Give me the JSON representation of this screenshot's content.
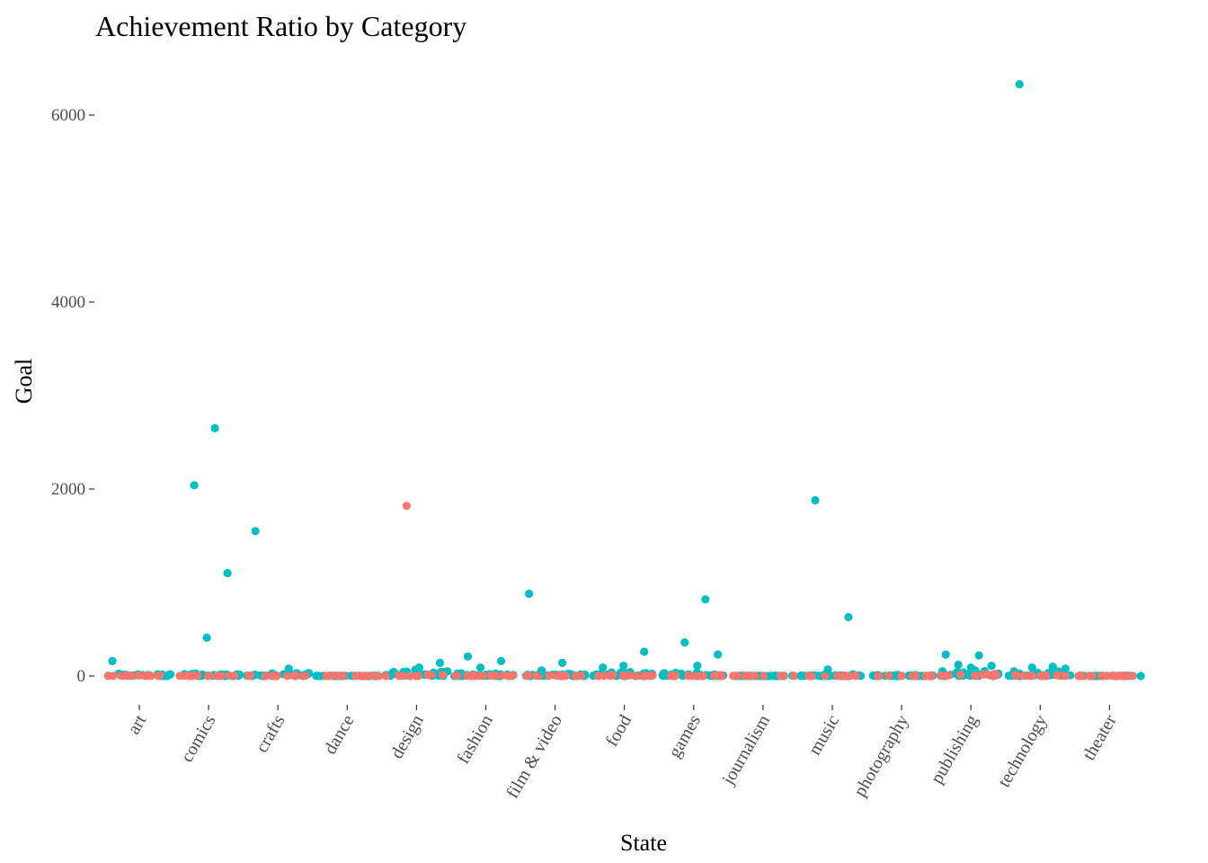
{
  "chart_data": {
    "type": "scatter",
    "title": "Achievement Ratio by Category",
    "xlabel": "State",
    "ylabel": "Goal",
    "categories": [
      "art",
      "comics",
      "crafts",
      "dance",
      "design",
      "fashion",
      "film & video",
      "food",
      "games",
      "journalism",
      "music",
      "photography",
      "publishing",
      "technology",
      "theater"
    ],
    "yticks": [
      0,
      2000,
      4000,
      6000
    ],
    "ylim": [
      -250,
      6350
    ],
    "grid": false,
    "legend": "none",
    "colors": {
      "failed": "#F8766D",
      "successful": "#00BFC4"
    },
    "outliers": [
      {
        "category": "art",
        "y": 160,
        "state": "successful"
      },
      {
        "category": "comics",
        "y": 2650,
        "state": "successful"
      },
      {
        "category": "comics",
        "y": 2040,
        "state": "successful"
      },
      {
        "category": "comics",
        "y": 1100,
        "state": "successful"
      },
      {
        "category": "comics",
        "y": 410,
        "state": "successful"
      },
      {
        "category": "crafts",
        "y": 1550,
        "state": "successful"
      },
      {
        "category": "crafts",
        "y": 80,
        "state": "successful"
      },
      {
        "category": "design",
        "y": 1820,
        "state": "failed"
      },
      {
        "category": "design",
        "y": 140,
        "state": "successful"
      },
      {
        "category": "design",
        "y": 90,
        "state": "successful"
      },
      {
        "category": "fashion",
        "y": 210,
        "state": "successful"
      },
      {
        "category": "fashion",
        "y": 160,
        "state": "successful"
      },
      {
        "category": "fashion",
        "y": 90,
        "state": "successful"
      },
      {
        "category": "film & video",
        "y": 880,
        "state": "successful"
      },
      {
        "category": "film & video",
        "y": 140,
        "state": "successful"
      },
      {
        "category": "film & video",
        "y": 60,
        "state": "successful"
      },
      {
        "category": "food",
        "y": 260,
        "state": "successful"
      },
      {
        "category": "food",
        "y": 110,
        "state": "successful"
      },
      {
        "category": "food",
        "y": 90,
        "state": "successful"
      },
      {
        "category": "games",
        "y": 820,
        "state": "successful"
      },
      {
        "category": "games",
        "y": 360,
        "state": "successful"
      },
      {
        "category": "games",
        "y": 230,
        "state": "successful"
      },
      {
        "category": "games",
        "y": 110,
        "state": "successful"
      },
      {
        "category": "music",
        "y": 1880,
        "state": "successful"
      },
      {
        "category": "music",
        "y": 630,
        "state": "successful"
      },
      {
        "category": "music",
        "y": 70,
        "state": "successful"
      },
      {
        "category": "publishing",
        "y": 230,
        "state": "successful"
      },
      {
        "category": "publishing",
        "y": 220,
        "state": "successful"
      },
      {
        "category": "publishing",
        "y": 120,
        "state": "successful"
      },
      {
        "category": "publishing",
        "y": 110,
        "state": "successful"
      },
      {
        "category": "publishing",
        "y": 90,
        "state": "successful"
      },
      {
        "category": "technology",
        "y": 6330,
        "state": "successful"
      },
      {
        "category": "technology",
        "y": 100,
        "state": "successful"
      },
      {
        "category": "technology",
        "y": 90,
        "state": "successful"
      },
      {
        "category": "technology",
        "y": 80,
        "state": "successful"
      }
    ],
    "bulk": [
      {
        "category": "art",
        "state": "successful",
        "ymax": 40
      },
      {
        "category": "art",
        "state": "failed",
        "ymax": 10
      },
      {
        "category": "comics",
        "state": "successful",
        "ymax": 40
      },
      {
        "category": "comics",
        "state": "failed",
        "ymax": 10
      },
      {
        "category": "crafts",
        "state": "successful",
        "ymax": 50
      },
      {
        "category": "crafts",
        "state": "failed",
        "ymax": 10
      },
      {
        "category": "dance",
        "state": "successful",
        "ymax": 5
      },
      {
        "category": "dance",
        "state": "failed",
        "ymax": 5
      },
      {
        "category": "design",
        "state": "successful",
        "ymax": 70
      },
      {
        "category": "design",
        "state": "failed",
        "ymax": 20
      },
      {
        "category": "fashion",
        "state": "successful",
        "ymax": 40
      },
      {
        "category": "fashion",
        "state": "failed",
        "ymax": 10
      },
      {
        "category": "film & video",
        "state": "successful",
        "ymax": 30
      },
      {
        "category": "film & video",
        "state": "failed",
        "ymax": 10
      },
      {
        "category": "food",
        "state": "successful",
        "ymax": 60
      },
      {
        "category": "food",
        "state": "failed",
        "ymax": 15
      },
      {
        "category": "games",
        "state": "successful",
        "ymax": 50
      },
      {
        "category": "games",
        "state": "failed",
        "ymax": 20
      },
      {
        "category": "journalism",
        "state": "successful",
        "ymax": 5
      },
      {
        "category": "journalism",
        "state": "failed",
        "ymax": 5
      },
      {
        "category": "music",
        "state": "successful",
        "ymax": 20
      },
      {
        "category": "music",
        "state": "failed",
        "ymax": 10
      },
      {
        "category": "photography",
        "state": "successful",
        "ymax": 15
      },
      {
        "category": "photography",
        "state": "failed",
        "ymax": 5
      },
      {
        "category": "publishing",
        "state": "successful",
        "ymax": 70
      },
      {
        "category": "publishing",
        "state": "failed",
        "ymax": 30
      },
      {
        "category": "technology",
        "state": "successful",
        "ymax": 60
      },
      {
        "category": "technology",
        "state": "failed",
        "ymax": 30
      },
      {
        "category": "theater",
        "state": "successful",
        "ymax": 5
      },
      {
        "category": "theater",
        "state": "failed",
        "ymax": 5
      }
    ]
  }
}
